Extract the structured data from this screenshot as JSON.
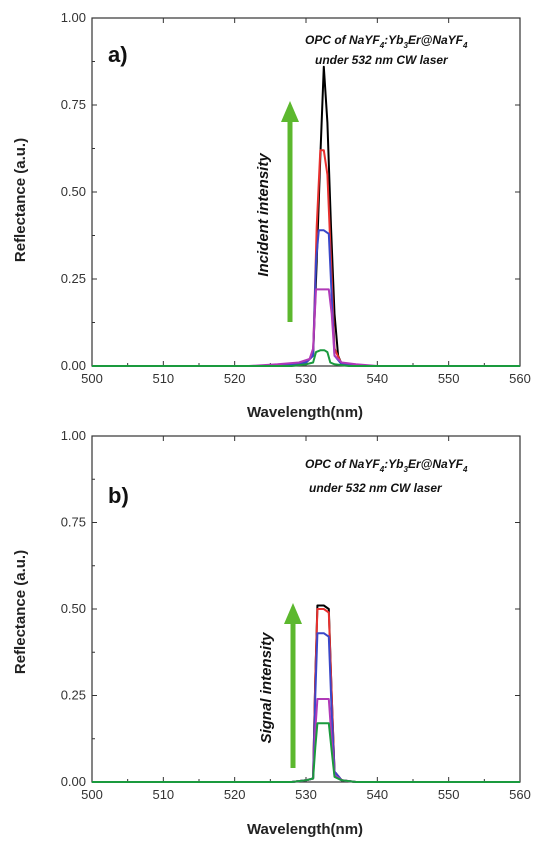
{
  "colors": {
    "black": "#000000",
    "red": "#e8312f",
    "blue": "#3a47c9",
    "magenta": "#b03ab8",
    "green": "#1a9a3e",
    "arrow": "#5cb82e",
    "axis": "#333333"
  },
  "chart_data": [
    {
      "type": "line",
      "panel_label": "a)",
      "xlabel": "Wavelength(nm)",
      "ylabel": "Reflectance (a.u.)",
      "xlim": [
        500,
        560
      ],
      "ylim": [
        0,
        1
      ],
      "x_ticks": [
        "500",
        "510",
        "520",
        "530",
        "540",
        "550",
        "560"
      ],
      "y_ticks": [
        "0.00",
        "0.25",
        "0.50",
        "0.75",
        "1.00"
      ],
      "annotation": {
        "line1_prefix": "OPC of ",
        "line1_a": "NaYF",
        "line1_sub1": "4",
        "line1_b": ":Yb",
        "line1_sub2": "3",
        "line1_c": "Er@NaYF",
        "line1_sub3": "4",
        "line2": "under 532 nm CW laser"
      },
      "arrow_label": "Incident intensity",
      "series": [
        {
          "color": "black",
          "x": [
            500,
            525,
            528,
            530,
            531,
            531.5,
            532,
            532.5,
            533,
            533.5,
            534,
            534.5,
            535,
            537,
            540,
            560
          ],
          "y": [
            0.0,
            0.0,
            0.005,
            0.01,
            0.03,
            0.3,
            0.6,
            0.86,
            0.7,
            0.4,
            0.15,
            0.03,
            0.005,
            0.0,
            0.0,
            0.0
          ]
        },
        {
          "color": "red",
          "x": [
            500,
            525,
            528,
            530,
            531,
            531.5,
            532,
            532.5,
            533,
            533.5,
            534,
            535,
            537,
            560
          ],
          "y": [
            0.0,
            0.0,
            0.005,
            0.01,
            0.03,
            0.4,
            0.62,
            0.62,
            0.55,
            0.3,
            0.05,
            0.005,
            0.0,
            0.0
          ]
        },
        {
          "color": "blue",
          "x": [
            500,
            525,
            528,
            530,
            531,
            531.4,
            531.8,
            532.5,
            533.2,
            533.6,
            534,
            535,
            537,
            560
          ],
          "y": [
            0.0,
            0.0,
            0.005,
            0.01,
            0.03,
            0.3,
            0.39,
            0.39,
            0.38,
            0.2,
            0.03,
            0.005,
            0.0,
            0.0
          ]
        },
        {
          "color": "magenta",
          "x": [
            500,
            522,
            526,
            529,
            530.5,
            531,
            531.4,
            532.5,
            533.2,
            533.6,
            534,
            535,
            537,
            540,
            560
          ],
          "y": [
            0.0,
            0.0,
            0.005,
            0.01,
            0.02,
            0.05,
            0.22,
            0.22,
            0.22,
            0.15,
            0.03,
            0.01,
            0.005,
            0.0,
            0.0
          ]
        },
        {
          "color": "green",
          "x": [
            500,
            528,
            530,
            531,
            531.4,
            532,
            532.6,
            533,
            533.4,
            534,
            536,
            560
          ],
          "y": [
            0.0,
            0.0,
            0.005,
            0.01,
            0.04,
            0.045,
            0.045,
            0.04,
            0.01,
            0.005,
            0.0,
            0.0
          ]
        }
      ]
    },
    {
      "type": "line",
      "panel_label": "b)",
      "xlabel": "Wavelength(nm)",
      "ylabel": "Reflectance (a.u.)",
      "xlim": [
        500,
        560
      ],
      "ylim": [
        0,
        1
      ],
      "x_ticks": [
        "500",
        "510",
        "520",
        "530",
        "540",
        "550",
        "560"
      ],
      "y_ticks": [
        "0.00",
        "0.25",
        "0.50",
        "0.75",
        "1.00"
      ],
      "annotation": {
        "line1_prefix": "OPC of ",
        "line1_a": "NaYF",
        "line1_sub1": "4",
        "line1_b": ":Yb",
        "line1_sub2": "3",
        "line1_c": "Er@NaYF",
        "line1_sub3": "4",
        "line2": "under 532 nm CW laser"
      },
      "arrow_label": "Signal intensity",
      "series": [
        {
          "color": "black",
          "x": [
            500,
            528,
            530,
            531,
            531.3,
            531.6,
            532.5,
            533.2,
            533.6,
            534,
            535,
            537,
            560
          ],
          "y": [
            0.0,
            0.0,
            0.005,
            0.01,
            0.3,
            0.51,
            0.51,
            0.5,
            0.25,
            0.03,
            0.005,
            0.0,
            0.0
          ]
        },
        {
          "color": "red",
          "x": [
            500,
            528,
            530,
            531,
            531.3,
            531.6,
            532.5,
            533.2,
            533.6,
            534,
            535,
            537,
            560
          ],
          "y": [
            0.0,
            0.0,
            0.005,
            0.01,
            0.3,
            0.5,
            0.5,
            0.49,
            0.25,
            0.03,
            0.005,
            0.0,
            0.0
          ]
        },
        {
          "color": "blue",
          "x": [
            500,
            528,
            530,
            531,
            531.3,
            531.6,
            532.5,
            533.2,
            533.6,
            534,
            535,
            537,
            560
          ],
          "y": [
            0.0,
            0.0,
            0.005,
            0.01,
            0.25,
            0.43,
            0.43,
            0.42,
            0.2,
            0.03,
            0.005,
            0.0,
            0.0
          ]
        },
        {
          "color": "magenta",
          "x": [
            500,
            528,
            530,
            531,
            531.3,
            531.6,
            532.5,
            533.2,
            533.6,
            534,
            535,
            537,
            560
          ],
          "y": [
            0.0,
            0.0,
            0.005,
            0.01,
            0.15,
            0.24,
            0.24,
            0.24,
            0.12,
            0.02,
            0.005,
            0.0,
            0.0
          ]
        },
        {
          "color": "green",
          "x": [
            500,
            528,
            530,
            531,
            531.3,
            531.6,
            532.5,
            533.2,
            533.6,
            534,
            535,
            537,
            560
          ],
          "y": [
            0.0,
            0.0,
            0.005,
            0.01,
            0.1,
            0.17,
            0.17,
            0.17,
            0.09,
            0.015,
            0.005,
            0.0,
            0.0
          ]
        }
      ]
    }
  ]
}
